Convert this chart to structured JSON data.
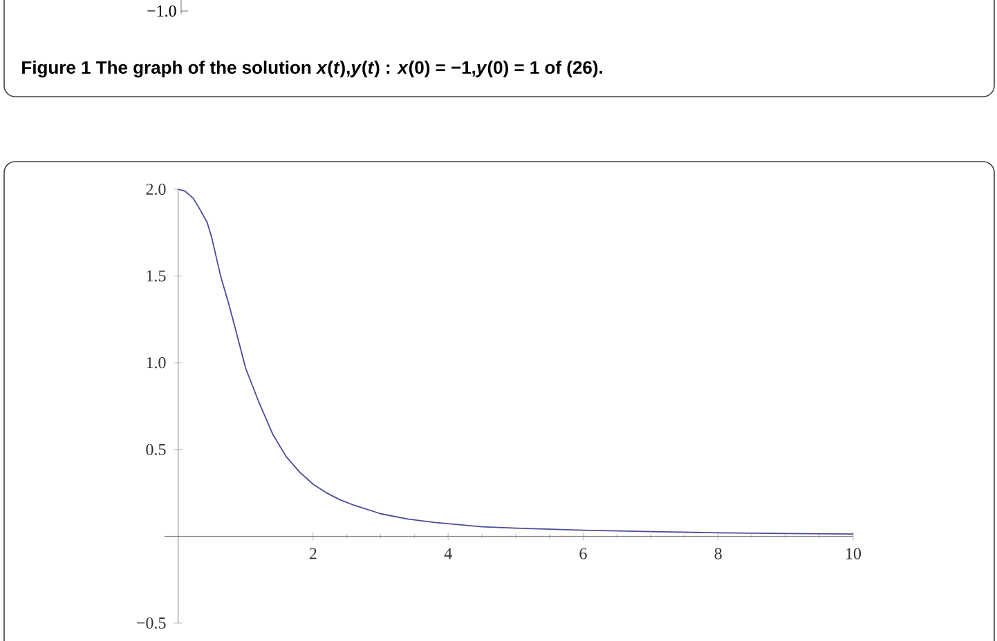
{
  "chart_data": [
    {
      "type": "other",
      "annotations": [
        "−1.0",
        "Figure 1  The graph of the solution *x*(*t*),*y*(*t*) : *x*(0) = −1,*y*(0) = 1 of (26)."
      ]
    },
    {
      "type": "line",
      "xlim": [
        -0.2,
        10
      ],
      "ylim": [
        -0.5,
        2.0
      ],
      "xticks": [
        2,
        4,
        6,
        8,
        10
      ],
      "yticks": [
        {
          "value": -0.5,
          "label": "−0.5"
        },
        {
          "value": 0.5,
          "label": "0.5"
        },
        {
          "value": 1.0,
          "label": "1.0"
        },
        {
          "value": 1.5,
          "label": "1.5"
        },
        {
          "value": 2.0,
          "label": "2.0"
        }
      ],
      "grid": false,
      "marker": "none",
      "line_style": "solid",
      "x": [
        0,
        0.1,
        0.22,
        0.3,
        0.43,
        0.5,
        0.63,
        0.75,
        0.84,
        1.0,
        1.2,
        1.4,
        1.6,
        1.8,
        2.0,
        2.2,
        2.4,
        2.6,
        3.0,
        3.4,
        3.8,
        4.5,
        5.0,
        5.6,
        6.0,
        7.0,
        8.0,
        9.0,
        10.0
      ],
      "series": [
        {
          "color": "#4b4b9a",
          "values": [
            2.0,
            1.99,
            1.95,
            1.9,
            1.81,
            1.72,
            1.5,
            1.34,
            1.21,
            0.97,
            0.77,
            0.59,
            0.46,
            0.37,
            0.3,
            0.25,
            0.21,
            0.18,
            0.13,
            0.1,
            0.08,
            0.055,
            0.047,
            0.04,
            0.035,
            0.027,
            0.02,
            0.016,
            0.013
          ]
        }
      ]
    }
  ]
}
